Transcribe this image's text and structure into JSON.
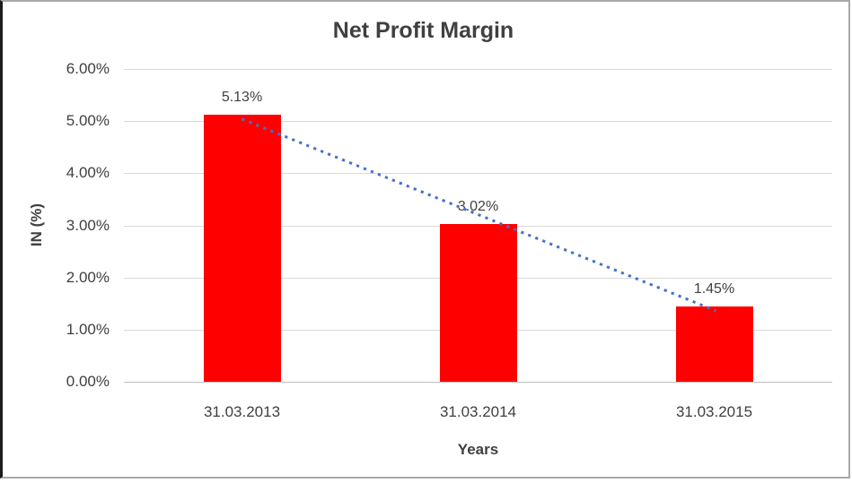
{
  "chart_data": {
    "type": "bar",
    "title": "Net Profit Margin",
    "categories": [
      "31.03.2013",
      "31.03.2014",
      "31.03.2015"
    ],
    "values": [
      5.13,
      3.02,
      1.45
    ],
    "data_labels": [
      "5.13%",
      "3.02%",
      "1.45%"
    ],
    "xlabel": "Years",
    "ylabel": "IN (%)",
    "ylim": [
      0,
      6
    ],
    "yticks": [
      0,
      1,
      2,
      3,
      4,
      5,
      6
    ],
    "ytick_labels": [
      "0.00%",
      "1.00%",
      "2.00%",
      "3.00%",
      "4.00%",
      "5.00%",
      "6.00%"
    ],
    "grid": true,
    "legend": "none",
    "bar_color": "#ff0000",
    "trendline": {
      "type": "linear",
      "style": "dotted",
      "color": "#4472c4"
    },
    "colors": {
      "text": "#404040",
      "gridline": "#d9d9d9",
      "axis_line": "#bfbfbf",
      "frame_border": "#a9a9a9",
      "background": "#ffffff"
    }
  }
}
